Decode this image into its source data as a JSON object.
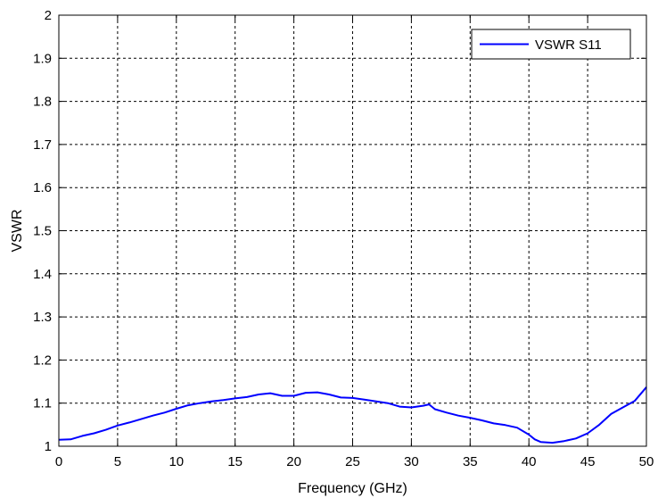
{
  "chart_data": {
    "type": "line",
    "title": "",
    "xlabel": "Frequency (GHz)",
    "ylabel": "VSWR",
    "xlim": [
      0,
      50
    ],
    "ylim": [
      1,
      2
    ],
    "x_ticks": [
      0,
      5,
      10,
      15,
      20,
      25,
      30,
      35,
      40,
      45,
      50
    ],
    "y_ticks": [
      1,
      1.1,
      1.2,
      1.3,
      1.4,
      1.5,
      1.6,
      1.7,
      1.8,
      1.9,
      2
    ],
    "x_tick_labels": [
      "0",
      "5",
      "10",
      "15",
      "20",
      "25",
      "30",
      "35",
      "40",
      "45",
      "50"
    ],
    "y_tick_labels": [
      "1",
      "1.1",
      "1.2",
      "1.3",
      "1.4",
      "1.5",
      "1.6",
      "1.7",
      "1.8",
      "1.9",
      "2"
    ],
    "grid": true,
    "grid_style": "dashed",
    "legend_position": "top-right",
    "colors": {
      "series": "#0000ff",
      "grid": "#000000",
      "axes": "#000000"
    },
    "series": [
      {
        "name": "VSWR S11",
        "x": [
          0,
          1,
          2,
          3,
          4,
          5,
          6,
          7,
          8,
          9,
          10,
          11,
          12,
          13,
          14,
          15,
          16,
          17,
          18,
          19,
          20,
          21,
          22,
          23,
          24,
          25,
          26,
          27,
          28,
          29,
          30,
          31,
          31.5,
          32,
          33,
          34,
          35,
          36,
          37,
          38,
          39,
          40,
          40.5,
          41,
          42,
          43,
          44,
          45,
          46,
          47,
          48,
          49,
          50
        ],
        "y": [
          1.015,
          1.016,
          1.024,
          1.03,
          1.038,
          1.048,
          1.055,
          1.063,
          1.071,
          1.078,
          1.087,
          1.095,
          1.1,
          1.104,
          1.107,
          1.111,
          1.114,
          1.12,
          1.123,
          1.117,
          1.117,
          1.124,
          1.125,
          1.12,
          1.113,
          1.112,
          1.108,
          1.104,
          1.1,
          1.092,
          1.09,
          1.094,
          1.097,
          1.086,
          1.078,
          1.071,
          1.066,
          1.06,
          1.053,
          1.049,
          1.043,
          1.027,
          1.016,
          1.01,
          1.008,
          1.012,
          1.018,
          1.03,
          1.05,
          1.075,
          1.09,
          1.105,
          1.137
        ]
      }
    ]
  }
}
